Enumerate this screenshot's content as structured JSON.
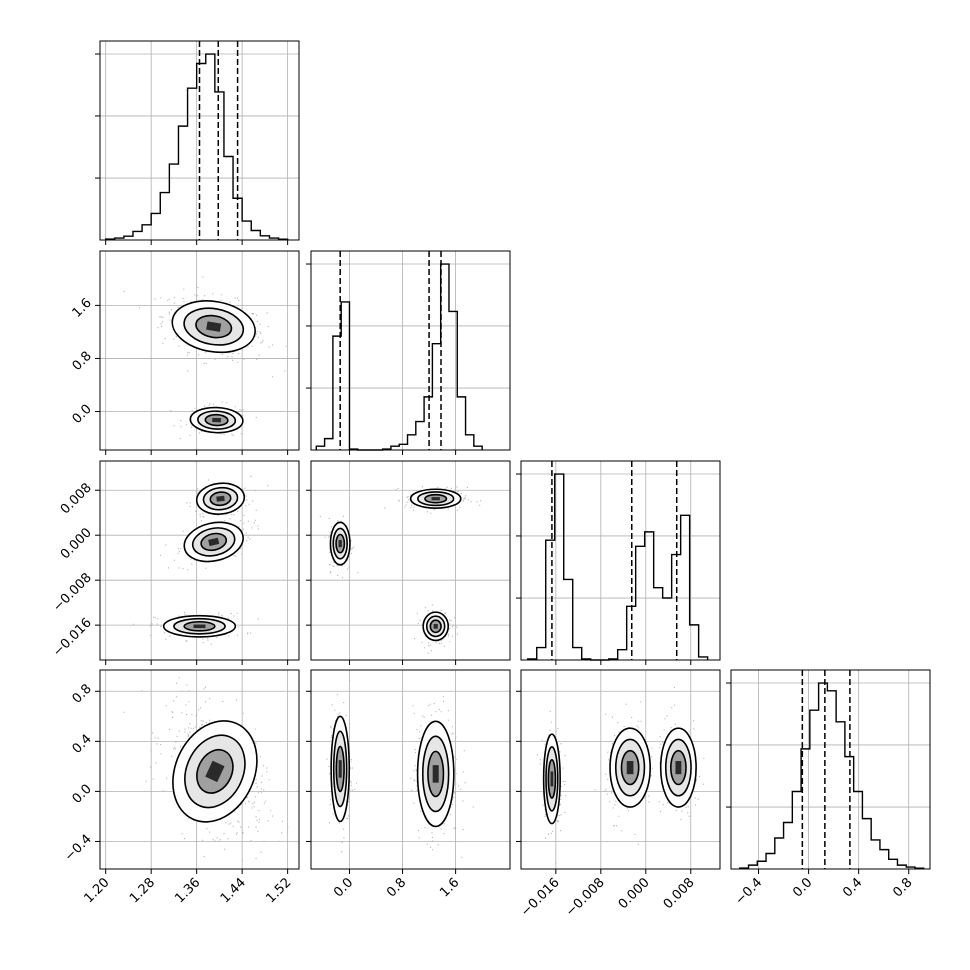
{
  "chart_data": {
    "type": "corner",
    "parameters": 4,
    "colors": {
      "ink": "#000000",
      "grid": "#b0b0b0",
      "points": "#777777",
      "background": "#ffffff"
    },
    "grid": true,
    "axes": [
      {
        "ticks": [
          1.2,
          1.28,
          1.36,
          1.44,
          1.52
        ],
        "tick_labels": [
          "1.20",
          "1.28",
          "1.36",
          "1.44",
          "1.52"
        ],
        "range": [
          1.19,
          1.54
        ]
      },
      {
        "ticks": [
          0.0,
          0.8,
          1.6
        ],
        "tick_labels": [
          "0.0",
          "0.8",
          "1.6"
        ],
        "range": [
          -0.58,
          2.42
        ]
      },
      {
        "ticks": [
          -0.016,
          -0.008,
          0.0,
          0.008
        ],
        "tick_labels": [
          "−0.016",
          "−0.008",
          "0.000",
          "0.008"
        ],
        "range": [
          -0.0222,
          0.0132
        ]
      },
      {
        "ticks": [
          -0.4,
          0.0,
          0.4,
          0.8
        ],
        "tick_labels": [
          "−0.4",
          "0.0",
          "0.4",
          "0.8"
        ],
        "range": [
          -0.62,
          0.97
        ]
      }
    ],
    "histograms": [
      {
        "param": 0,
        "bin_edges": [
          1.2,
          1.216,
          1.232,
          1.248,
          1.264,
          1.28,
          1.296,
          1.312,
          1.328,
          1.344,
          1.36,
          1.376,
          1.392,
          1.408,
          1.424,
          1.44,
          1.456,
          1.472,
          1.488,
          1.504,
          1.52
        ],
        "counts": [
          0.005,
          0.01,
          0.02,
          0.045,
          0.08,
          0.14,
          0.25,
          0.4,
          0.6,
          0.8,
          0.93,
          0.98,
          0.78,
          0.44,
          0.22,
          0.1,
          0.05,
          0.022,
          0.01,
          0.004
        ],
        "quantiles": [
          1.365,
          1.398,
          1.432
        ]
      },
      {
        "param": 1,
        "bin_edges": [
          -0.5,
          -0.375,
          -0.25,
          -0.125,
          0.0,
          0.125,
          0.25,
          0.375,
          0.5,
          0.625,
          0.75,
          0.875,
          1.0,
          1.125,
          1.25,
          1.375,
          1.5,
          1.625,
          1.75,
          1.875,
          2.0
        ],
        "counts": [
          0.02,
          0.06,
          0.6,
          0.78,
          0.005,
          0.0,
          0.0,
          0.0,
          0.005,
          0.02,
          0.03,
          0.08,
          0.15,
          0.28,
          0.56,
          0.98,
          0.73,
          0.28,
          0.08,
          0.02
        ],
        "quantiles": [
          -0.14,
          1.2,
          1.38
        ]
      },
      {
        "param": 2,
        "bin_edges": [
          -0.021,
          -0.0194,
          -0.0178,
          -0.0162,
          -0.0146,
          -0.013,
          -0.0114,
          -0.0098,
          -0.0082,
          -0.0066,
          -0.005,
          -0.0034,
          -0.0018,
          -0.0002,
          0.0014,
          0.003,
          0.0046,
          0.0062,
          0.0078,
          0.0094,
          0.011
        ],
        "counts": [
          0.005,
          0.06,
          0.58,
          0.9,
          0.39,
          0.06,
          0.005,
          0.0,
          0.0,
          0.005,
          0.05,
          0.26,
          0.55,
          0.62,
          0.35,
          0.3,
          0.51,
          0.7,
          0.17,
          0.015
        ],
        "quantiles": [
          -0.0167,
          -0.0025,
          0.0055
        ]
      },
      {
        "param": 3,
        "bin_edges": [
          -0.55,
          -0.48,
          -0.41,
          -0.34,
          -0.27,
          -0.2,
          -0.13,
          -0.06,
          0.01,
          0.08,
          0.15,
          0.22,
          0.29,
          0.36,
          0.43,
          0.5,
          0.57,
          0.64,
          0.71,
          0.78,
          0.85,
          0.92
        ],
        "counts": [
          0.005,
          0.02,
          0.04,
          0.08,
          0.16,
          0.24,
          0.4,
          0.62,
          0.82,
          0.96,
          0.92,
          0.76,
          0.58,
          0.4,
          0.26,
          0.15,
          0.1,
          0.05,
          0.02,
          0.01,
          0.004
        ],
        "quantiles": [
          -0.05,
          0.13,
          0.33
        ]
      }
    ],
    "scatter_panels": [
      {
        "x": 0,
        "y": 1,
        "modes": [
          {
            "cx": 1.39,
            "cy": 1.28,
            "sx": 0.035,
            "sy": 0.18,
            "rho": -0.35,
            "w": 0.74
          },
          {
            "cx": 1.395,
            "cy": -0.13,
            "sx": 0.022,
            "sy": 0.09,
            "rho": -0.1,
            "w": 0.26
          }
        ]
      },
      {
        "x": 0,
        "y": 2,
        "modes": [
          {
            "cx": 1.402,
            "cy": 0.0065,
            "sx": 0.02,
            "sy": 0.0013,
            "rho": 0.2,
            "w": 0.34
          },
          {
            "cx": 1.39,
            "cy": -0.0012,
            "sx": 0.025,
            "sy": 0.0016,
            "rho": 0.45,
            "w": 0.33
          },
          {
            "cx": 1.365,
            "cy": -0.0162,
            "sx": 0.03,
            "sy": 0.0009,
            "rho": 0.0,
            "w": 0.33
          }
        ]
      },
      {
        "x": 0,
        "y": 3,
        "modes": [
          {
            "cx": 1.392,
            "cy": 0.16,
            "sx": 0.033,
            "sy": 0.2,
            "rho": -0.45,
            "w": 1.0
          }
        ]
      },
      {
        "x": 1,
        "y": 2,
        "modes": [
          {
            "cx": 1.3,
            "cy": 0.0065,
            "sx": 0.18,
            "sy": 0.0008,
            "rho": 0.0,
            "w": 0.34
          },
          {
            "cx": -0.14,
            "cy": -0.0015,
            "sx": 0.07,
            "sy": 0.0018,
            "rho": 0.0,
            "w": 0.33
          },
          {
            "cx": 1.3,
            "cy": -0.0162,
            "sx": 0.09,
            "sy": 0.0012,
            "rho": 0.0,
            "w": 0.33
          }
        ]
      },
      {
        "x": 1,
        "y": 3,
        "modes": [
          {
            "cx": -0.14,
            "cy": 0.18,
            "sx": 0.065,
            "sy": 0.2,
            "rho": 0.0,
            "w": 0.3
          },
          {
            "cx": 1.3,
            "cy": 0.14,
            "sx": 0.13,
            "sy": 0.2,
            "rho": 0.0,
            "w": 0.7
          }
        ]
      },
      {
        "x": 2,
        "y": 3,
        "modes": [
          {
            "cx": -0.0167,
            "cy": 0.1,
            "sx": 0.0007,
            "sy": 0.17,
            "rho": 0.0,
            "w": 0.33
          },
          {
            "cx": -0.0028,
            "cy": 0.19,
            "sx": 0.0017,
            "sy": 0.15,
            "rho": 0.0,
            "w": 0.33
          },
          {
            "cx": 0.0058,
            "cy": 0.19,
            "sx": 0.0015,
            "sy": 0.15,
            "rho": 0.0,
            "w": 0.34
          }
        ]
      }
    ]
  }
}
